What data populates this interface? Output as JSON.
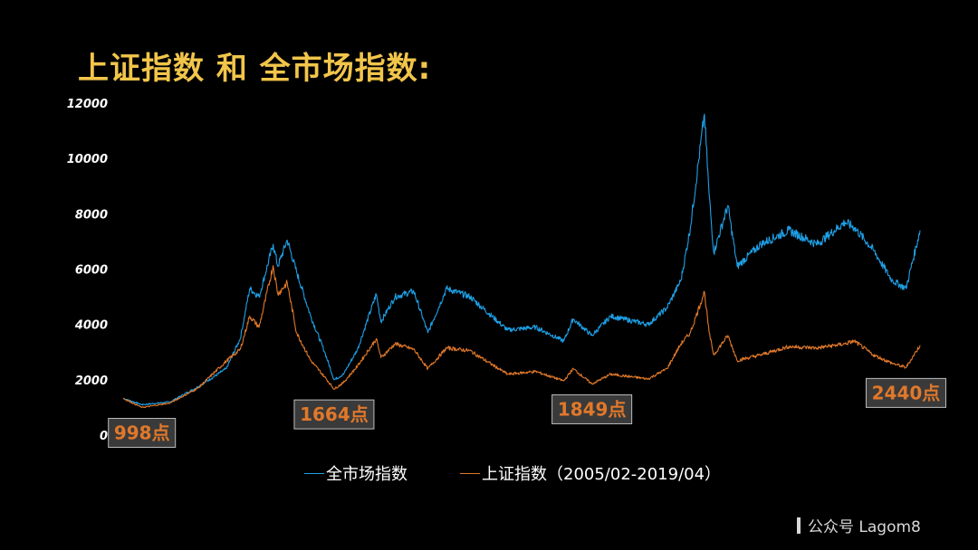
{
  "header": {
    "title": "上证指数 和 全市场指数:"
  },
  "chart_data": {
    "type": "line",
    "title": "上证指数 和 全市场指数:",
    "xlabel": "",
    "ylabel": "",
    "x_range": [
      "2005/02",
      "2019/04"
    ],
    "ylim": [
      0,
      12000
    ],
    "yticks": [
      "0",
      "2000",
      "4000",
      "6000",
      "8000",
      "10000",
      "12000"
    ],
    "grid": false,
    "legend_position": "bottom",
    "series": [
      {
        "name": "全市场指数",
        "color": "#1ea0e6",
        "points": [
          [
            "2005/02",
            1330
          ],
          [
            "2005/06",
            1100
          ],
          [
            "2005/12",
            1200
          ],
          [
            "2006/06",
            1750
          ],
          [
            "2006/12",
            2400
          ],
          [
            "2007/03",
            3500
          ],
          [
            "2007/05",
            5300
          ],
          [
            "2007/07",
            5000
          ],
          [
            "2007/10",
            6900
          ],
          [
            "2007/11",
            6100
          ],
          [
            "2008/01",
            7050
          ],
          [
            "2008/03",
            5900
          ],
          [
            "2008/06",
            4300
          ],
          [
            "2008/09",
            3000
          ],
          [
            "2008/11",
            2000
          ],
          [
            "2009/01",
            2200
          ],
          [
            "2009/04",
            3100
          ],
          [
            "2009/08",
            5100
          ],
          [
            "2009/09",
            4100
          ],
          [
            "2009/12",
            5000
          ],
          [
            "2010/04",
            5200
          ],
          [
            "2010/07",
            3700
          ],
          [
            "2010/11",
            5300
          ],
          [
            "2011/04",
            5000
          ],
          [
            "2011/12",
            3800
          ],
          [
            "2012/06",
            3900
          ],
          [
            "2012/12",
            3400
          ],
          [
            "2013/02",
            4200
          ],
          [
            "2013/06",
            3600
          ],
          [
            "2013/10",
            4300
          ],
          [
            "2014/06",
            4000
          ],
          [
            "2014/10",
            4600
          ],
          [
            "2015/01",
            5600
          ],
          [
            "2015/03",
            7500
          ],
          [
            "2015/06",
            11600
          ],
          [
            "2015/07",
            8700
          ],
          [
            "2015/08",
            6600
          ],
          [
            "2015/11",
            8300
          ],
          [
            "2016/01",
            6100
          ],
          [
            "2016/06",
            6900
          ],
          [
            "2016/12",
            7400
          ],
          [
            "2017/06",
            6900
          ],
          [
            "2017/12",
            7700
          ],
          [
            "2018/02",
            7500
          ],
          [
            "2018/06",
            6700
          ],
          [
            "2018/10",
            5600
          ],
          [
            "2019/01",
            5300
          ],
          [
            "2019/04",
            7400
          ]
        ]
      },
      {
        "name": "上证指数（2005/02-2019/04）",
        "color": "#e0782a",
        "points": [
          [
            "2005/02",
            1330
          ],
          [
            "2005/06",
            998
          ],
          [
            "2005/12",
            1160
          ],
          [
            "2006/06",
            1700
          ],
          [
            "2006/12",
            2675
          ],
          [
            "2007/03",
            3100
          ],
          [
            "2007/05",
            4300
          ],
          [
            "2007/07",
            3900
          ],
          [
            "2007/10",
            6124
          ],
          [
            "2007/11",
            5100
          ],
          [
            "2008/01",
            5500
          ],
          [
            "2008/03",
            3700
          ],
          [
            "2008/06",
            2700
          ],
          [
            "2008/09",
            2100
          ],
          [
            "2008/11",
            1664
          ],
          [
            "2009/01",
            1900
          ],
          [
            "2009/04",
            2500
          ],
          [
            "2009/08",
            3478
          ],
          [
            "2009/09",
            2800
          ],
          [
            "2009/12",
            3300
          ],
          [
            "2010/04",
            3100
          ],
          [
            "2010/07",
            2400
          ],
          [
            "2010/11",
            3150
          ],
          [
            "2011/04",
            3050
          ],
          [
            "2011/12",
            2200
          ],
          [
            "2012/06",
            2300
          ],
          [
            "2012/12",
            1960
          ],
          [
            "2013/02",
            2400
          ],
          [
            "2013/06",
            1849
          ],
          [
            "2013/10",
            2200
          ],
          [
            "2014/06",
            2030
          ],
          [
            "2014/10",
            2400
          ],
          [
            "2015/01",
            3300
          ],
          [
            "2015/03",
            3700
          ],
          [
            "2015/06",
            5178
          ],
          [
            "2015/07",
            3700
          ],
          [
            "2015/08",
            2900
          ],
          [
            "2015/11",
            3600
          ],
          [
            "2016/01",
            2700
          ],
          [
            "2016/06",
            2900
          ],
          [
            "2016/12",
            3200
          ],
          [
            "2017/06",
            3150
          ],
          [
            "2017/12",
            3300
          ],
          [
            "2018/02",
            3400
          ],
          [
            "2018/06",
            2900
          ],
          [
            "2018/10",
            2600
          ],
          [
            "2019/01",
            2440
          ],
          [
            "2019/04",
            3250
          ]
        ]
      }
    ],
    "annotations": [
      {
        "text": "998点",
        "x": "2005/06",
        "value": 998
      },
      {
        "text": "1664点",
        "x": "2008/11",
        "value": 1664
      },
      {
        "text": "1849点",
        "x": "2013/06",
        "value": 1849
      },
      {
        "text": "2440点",
        "x": "2019/01",
        "value": 2440
      }
    ]
  },
  "watermark": {
    "text": "公众号 Lagom8"
  }
}
